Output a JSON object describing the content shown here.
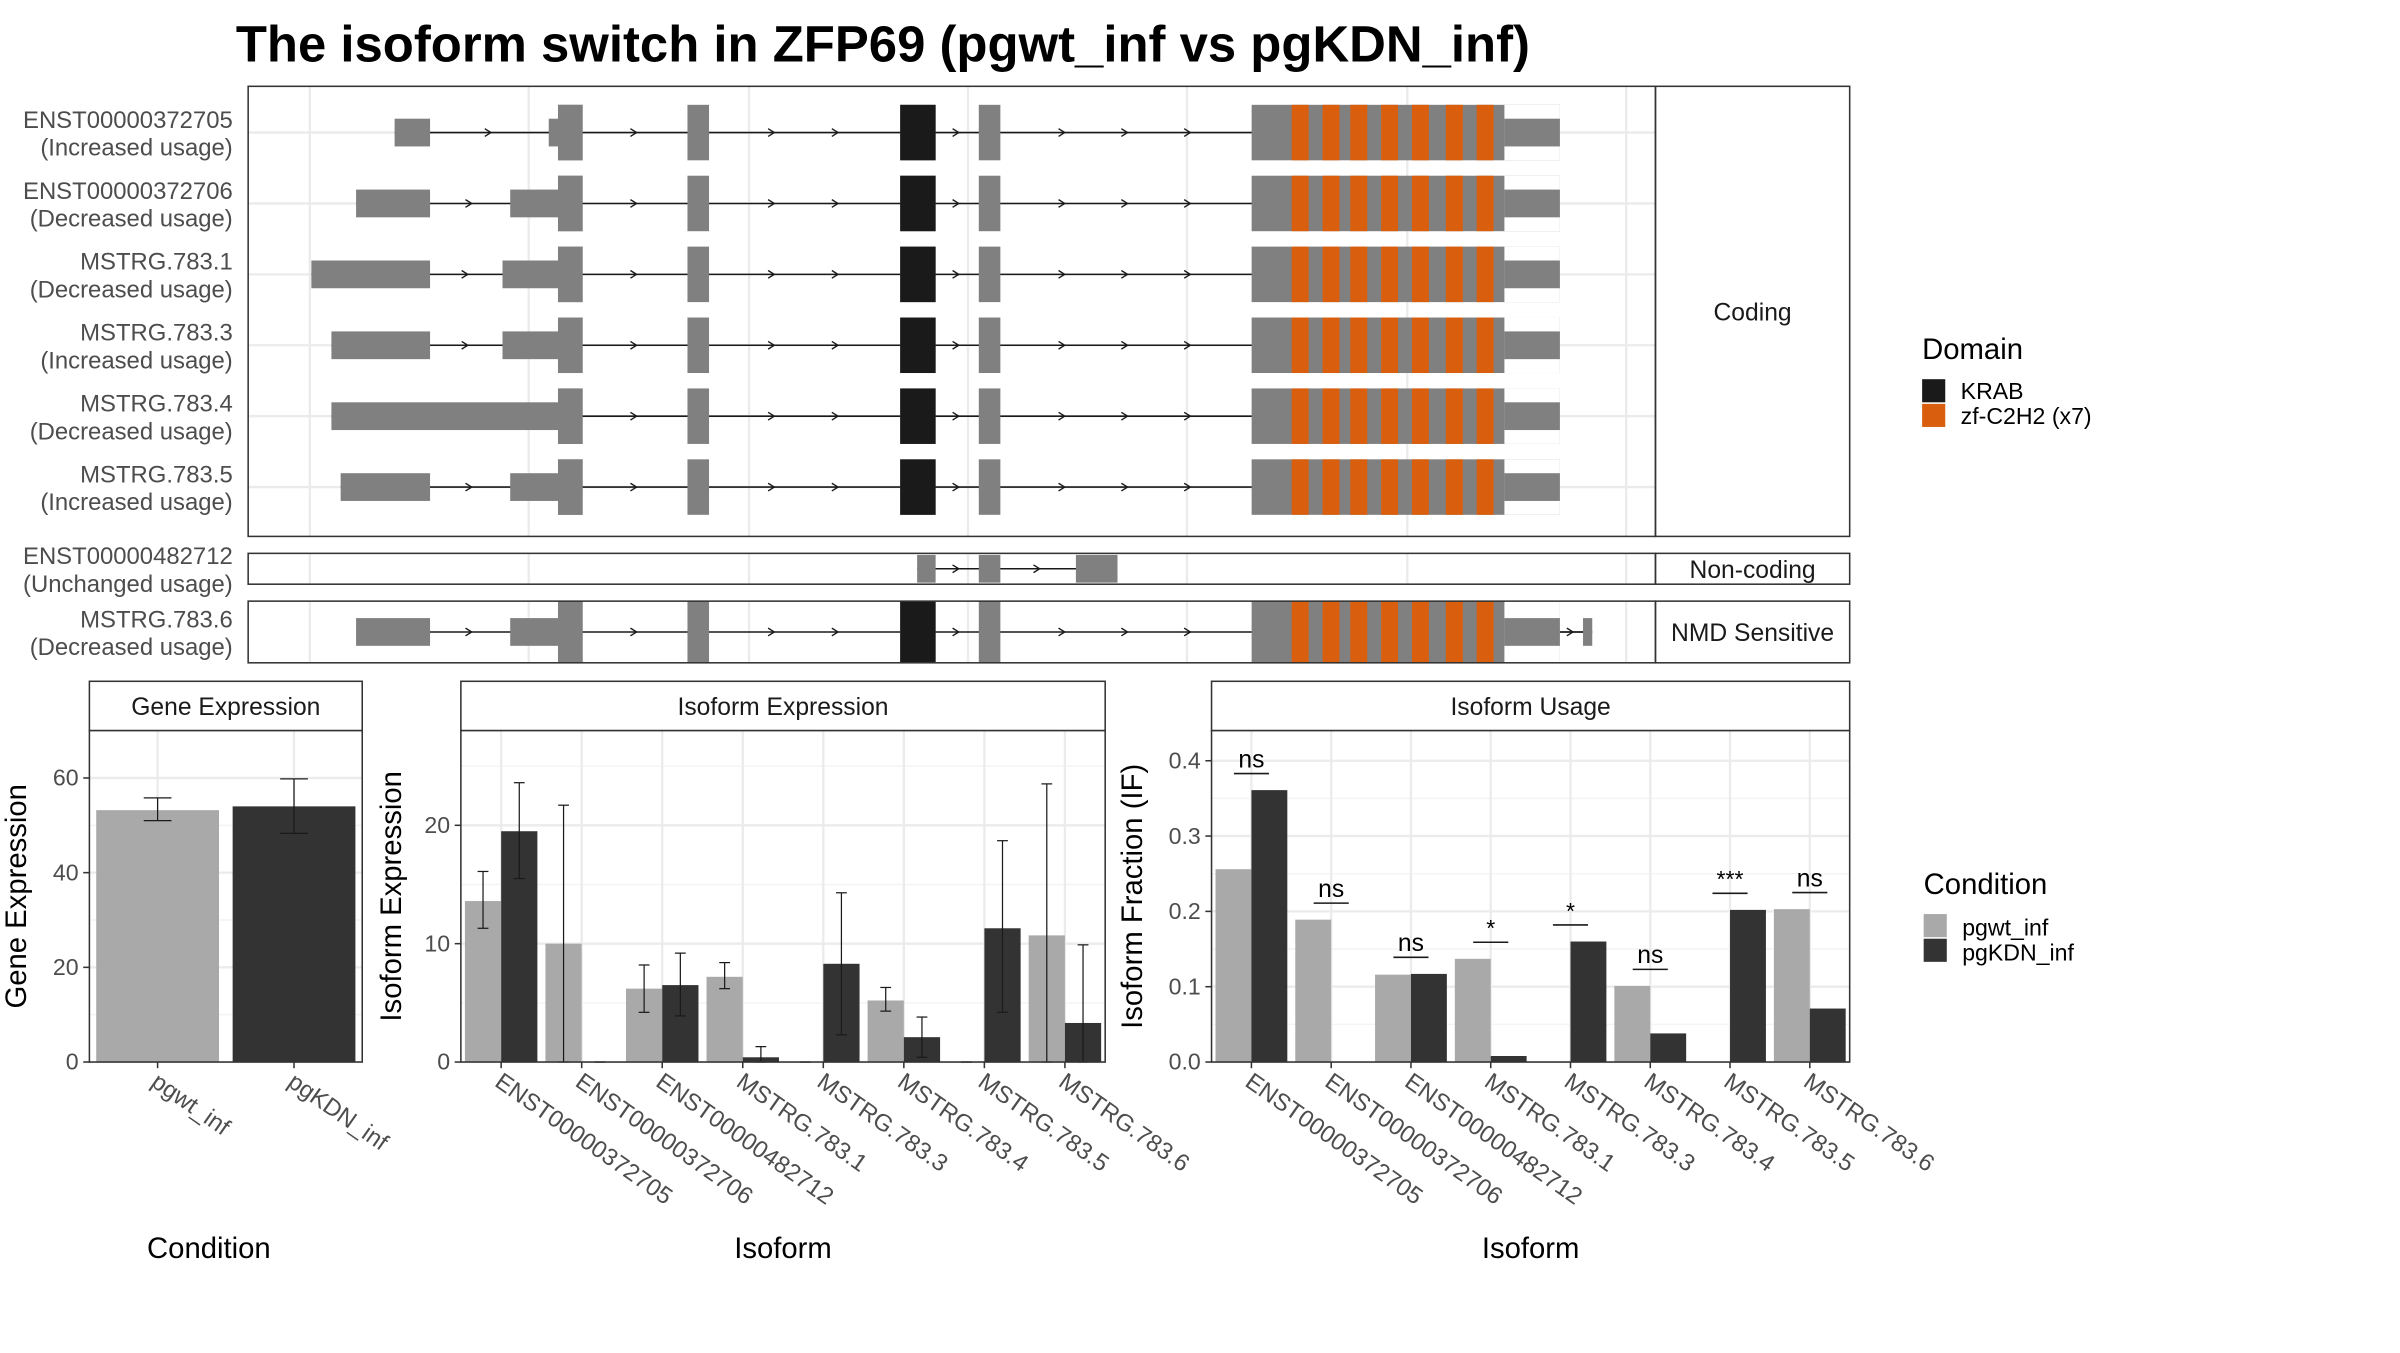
{
  "title": "The isoform switch in ZFP69 (pgwt_inf vs pgKDN_inf)",
  "colors": {
    "exon": "#808080",
    "krab": "#1a1a1a",
    "zf": "#d95f0e",
    "cond_wt": "#a9a9a9",
    "cond_kdn": "#333333",
    "grid": "#ebebeb",
    "strip_bg": "#ffffff",
    "panel_border": "#333333"
  },
  "structure": {
    "groups": [
      {
        "label": "Coding",
        "transcripts": [
          {
            "name": "ENST00000372705",
            "usage": "(Increased usage)"
          },
          {
            "name": "ENST00000372706",
            "usage": "(Decreased usage)"
          },
          {
            "name": "MSTRG.783.1",
            "usage": "(Decreased usage)"
          },
          {
            "name": "MSTRG.783.3",
            "usage": "(Increased usage)"
          },
          {
            "name": "MSTRG.783.4",
            "usage": "(Decreased usage)"
          },
          {
            "name": "MSTRG.783.5",
            "usage": "(Increased usage)"
          }
        ]
      },
      {
        "label": "Non-coding",
        "transcripts": [
          {
            "name": "ENST00000482712",
            "usage": "(Unchanged usage)"
          }
        ]
      },
      {
        "label": "NMD Sensitive",
        "transcripts": [
          {
            "name": "MSTRG.783.6",
            "usage": "(Decreased usage)"
          }
        ]
      }
    ],
    "legend": {
      "title": "Domain",
      "items": [
        {
          "label": "KRAB",
          "color": "#1a1a1a"
        },
        {
          "label": "zf-C2H2 (x7)",
          "color": "#d95f0e"
        }
      ]
    }
  },
  "chart_data": [
    {
      "type": "bar",
      "title": "Gene Expression",
      "xlabel": "Condition",
      "ylabel": "Gene Expression",
      "ylim": [
        0,
        70
      ],
      "yticks": [
        0,
        20,
        40,
        60
      ],
      "categories": [
        "pgwt_inf",
        "pgKDN_inf"
      ],
      "values": [
        53.2,
        54.0
      ],
      "errors": [
        [
          51.0,
          55.8
        ],
        [
          48.3,
          59.8
        ]
      ]
    },
    {
      "type": "bar",
      "title": "Isoform Expression",
      "xlabel": "Isoform",
      "ylabel": "Isoform Expression",
      "ylim": [
        0,
        28
      ],
      "yticks": [
        0,
        10,
        20
      ],
      "categories": [
        "ENST00000372705",
        "ENST00000372706",
        "ENST00000482712",
        "MSTRG.783.1",
        "MSTRG.783.3",
        "MSTRG.783.4",
        "MSTRG.783.5",
        "MSTRG.783.6"
      ],
      "series": [
        {
          "name": "pgwt_inf",
          "values": [
            13.6,
            10.0,
            6.2,
            7.2,
            0.0,
            5.2,
            0.0,
            10.7
          ],
          "errors": [
            [
              11.3,
              16.1
            ],
            [
              0.0,
              21.7
            ],
            [
              4.2,
              8.2
            ],
            [
              6.2,
              8.4
            ],
            [
              0.0,
              0.0
            ],
            [
              4.3,
              6.3
            ],
            [
              0.0,
              0.0
            ],
            [
              0.0,
              23.5
            ]
          ]
        },
        {
          "name": "pgKDN_inf",
          "values": [
            19.5,
            0.0,
            6.5,
            0.4,
            8.3,
            2.1,
            11.3,
            3.3
          ],
          "errors": [
            [
              15.5,
              23.6
            ],
            [
              0.0,
              0.0
            ],
            [
              3.9,
              9.2
            ],
            [
              0.0,
              1.3
            ],
            [
              2.3,
              14.3
            ],
            [
              0.4,
              3.8
            ],
            [
              4.2,
              18.7
            ],
            [
              0.0,
              9.9
            ]
          ]
        }
      ]
    },
    {
      "type": "bar",
      "title": "Isoform Usage",
      "xlabel": "Isoform",
      "ylabel": "Isoform Fraction (IF)",
      "ylim": [
        0,
        0.44
      ],
      "yticks": [
        0.0,
        0.1,
        0.2,
        0.3,
        0.4
      ],
      "tick_labels": [
        "0.0",
        "0.1",
        "0.2",
        "0.3",
        "0.4"
      ],
      "categories": [
        "ENST00000372705",
        "ENST00000372706",
        "ENST00000482712",
        "MSTRG.783.1",
        "MSTRG.783.3",
        "MSTRG.783.4",
        "MSTRG.783.5",
        "MSTRG.783.6"
      ],
      "series": [
        {
          "name": "pgwt_inf",
          "values": [
            0.256,
            0.189,
            0.116,
            0.137,
            0.0,
            0.101,
            0.0,
            0.203
          ]
        },
        {
          "name": "pgKDN_inf",
          "values": [
            0.361,
            0.0,
            0.117,
            0.008,
            0.16,
            0.038,
            0.202,
            0.071
          ]
        }
      ],
      "significance": [
        "ns",
        "ns",
        "ns",
        "*",
        "*",
        "ns",
        "***",
        "ns"
      ]
    }
  ],
  "condition_legend": {
    "title": "Condition",
    "items": [
      {
        "label": "pgwt_inf",
        "color": "#a9a9a9"
      },
      {
        "label": "pgKDN_inf",
        "color": "#333333"
      }
    ]
  }
}
